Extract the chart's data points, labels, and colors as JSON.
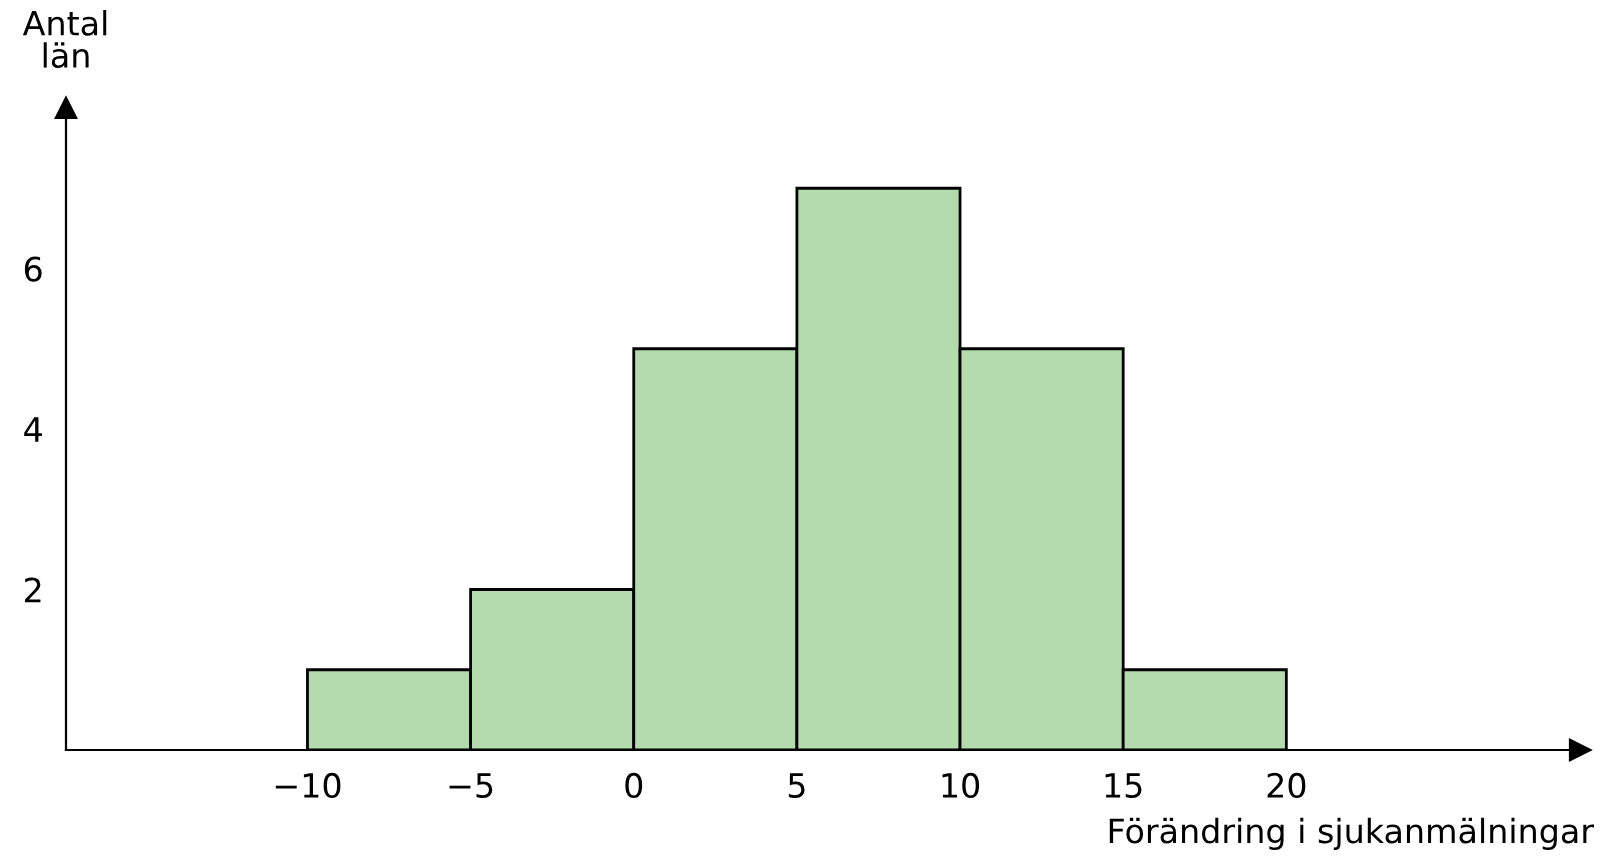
{
  "chart_data": {
    "type": "histogram",
    "xlabel": "Förändring i sjukanmälningar",
    "ylabel": "Antal\nlän",
    "bins": [
      -10,
      -5,
      0,
      5,
      10,
      15,
      20
    ],
    "values": [
      1,
      2,
      5,
      7,
      5,
      1
    ],
    "color": "#b3dbae",
    "xlim": [
      -17.4,
      29
    ],
    "ylim": [
      0,
      8
    ],
    "xticks": [
      -10,
      -5,
      0,
      5,
      10,
      15,
      20
    ],
    "yticks": [
      2,
      4,
      6
    ],
    "grid": false,
    "legend": false
  }
}
